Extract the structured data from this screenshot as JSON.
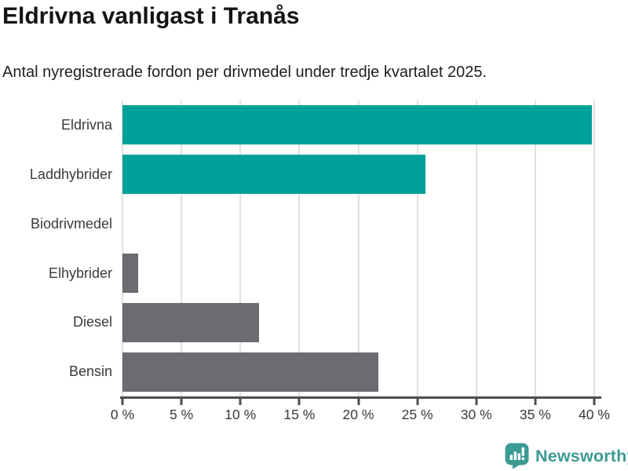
{
  "title": "Eldrivna vanligast i Tranås",
  "subtitle": "Antal nyregistrerade fordon per drivmedel under tredje kvartalet 2025.",
  "chart_data": {
    "type": "bar",
    "orientation": "horizontal",
    "categories": [
      "Eldrivna",
      "Laddhybrider",
      "Biodrivmedel",
      "Elhybrider",
      "Diesel",
      "Bensin"
    ],
    "values": [
      39.8,
      25.7,
      0,
      1.3,
      11.6,
      21.7
    ],
    "unit": "%",
    "bar_colors": [
      "#00a199",
      "#00a199",
      "#6b6b71",
      "#6b6b71",
      "#6b6b71",
      "#6b6b71"
    ],
    "highlight_color": "#00a199",
    "default_color": "#6b6b71",
    "xlim": [
      0,
      40
    ],
    "x_tick_values": [
      0,
      5,
      10,
      15,
      20,
      25,
      30,
      35,
      40
    ],
    "x_tick_labels": [
      "0 %",
      "5 %",
      "10 %",
      "15 %",
      "20 %",
      "25 %",
      "30 %",
      "35 %",
      "40 %"
    ],
    "grid": true,
    "gridline_color": "#e1e1e1",
    "axis_color": "#4e4e4e",
    "title": "Eldrivna vanligast i Tranås",
    "xlabel": "",
    "ylabel": ""
  },
  "footer": {
    "brand": "Newsworthy",
    "brand_color": "#3c9a95"
  }
}
